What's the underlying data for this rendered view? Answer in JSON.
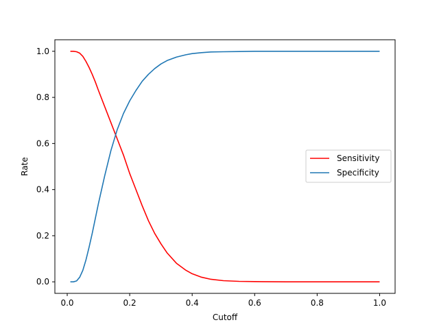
{
  "chart_data": {
    "type": "line",
    "title": "",
    "xlabel": "Cutoff",
    "ylabel": "Rate",
    "xlim": [
      -0.0395,
      1.0495
    ],
    "ylim": [
      -0.05,
      1.05
    ],
    "xticks": [
      0.0,
      0.2,
      0.4,
      0.6,
      0.8,
      1.0
    ],
    "xtick_labels": [
      "0.0",
      "0.2",
      "0.4",
      "0.6",
      "0.8",
      "1.0"
    ],
    "yticks": [
      0.0,
      0.2,
      0.4,
      0.6,
      0.8,
      1.0
    ],
    "ytick_labels": [
      "0.0",
      "0.2",
      "0.4",
      "0.6",
      "0.8",
      "1.0"
    ],
    "grid": false,
    "legend_position": "center-right",
    "x": [
      0.01,
      0.02,
      0.03,
      0.04,
      0.05,
      0.06,
      0.07,
      0.08,
      0.09,
      0.1,
      0.12,
      0.14,
      0.16,
      0.18,
      0.2,
      0.22,
      0.24,
      0.26,
      0.28,
      0.3,
      0.32,
      0.35,
      0.38,
      0.4,
      0.43,
      0.46,
      0.5,
      0.55,
      0.6,
      0.7,
      0.8,
      0.9,
      1.0
    ],
    "series": [
      {
        "name": "Sensitivity",
        "color": "#ff0000",
        "values": [
          1.0,
          1.0,
          0.998,
          0.992,
          0.978,
          0.956,
          0.93,
          0.9,
          0.867,
          0.83,
          0.76,
          0.69,
          0.62,
          0.55,
          0.47,
          0.4,
          0.33,
          0.265,
          0.21,
          0.165,
          0.125,
          0.08,
          0.05,
          0.035,
          0.02,
          0.011,
          0.005,
          0.002,
          0.001,
          0.0,
          0.0,
          0.0,
          0.0
        ]
      },
      {
        "name": "Specificity",
        "color": "#1f77b4",
        "values": [
          0.0,
          0.0,
          0.004,
          0.02,
          0.05,
          0.095,
          0.15,
          0.21,
          0.275,
          0.34,
          0.46,
          0.57,
          0.66,
          0.73,
          0.785,
          0.83,
          0.87,
          0.9,
          0.925,
          0.945,
          0.96,
          0.975,
          0.985,
          0.99,
          0.994,
          0.997,
          0.998,
          0.999,
          1.0,
          1.0,
          1.0,
          1.0,
          1.0
        ]
      }
    ]
  }
}
